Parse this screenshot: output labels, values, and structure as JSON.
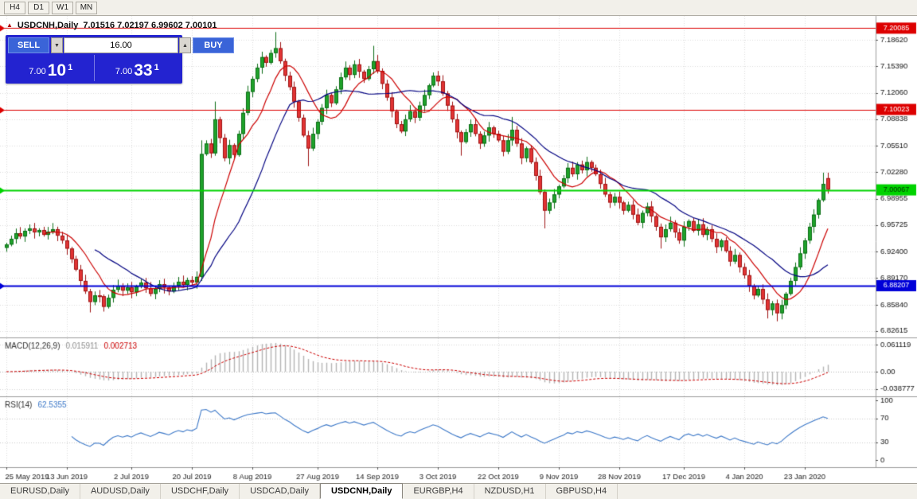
{
  "toolbar": {
    "timeframes": [
      "H4",
      "D1",
      "W1",
      "MN"
    ]
  },
  "chart_header": {
    "icon": "▲",
    "symbol_title": "USDCNH,Daily",
    "ohlc": "7.01516 7.02197 6.99602 7.00101"
  },
  "trade_panel": {
    "sell_label": "SELL",
    "buy_label": "BUY",
    "volume": "16.00",
    "volume_down_icon": "▼",
    "volume_up_icon": "▲",
    "sell_price": {
      "prefix": "7.00",
      "big": "10",
      "sup": "1"
    },
    "buy_price": {
      "prefix": "7.00",
      "big": "33",
      "sup": "1"
    }
  },
  "bottom_tabs": {
    "active_index": 4,
    "tabs": [
      "EURUSD,Daily",
      "AUDUSD,Daily",
      "USDCHF,Daily",
      "USDCAD,Daily",
      "USDCNH,Daily",
      "EURGBP,H4",
      "NZDUSD,H1",
      "GBPUSD,H4"
    ]
  },
  "chart_data": {
    "type": "candlestick+indicators",
    "symbol": "USDCNH",
    "timeframe": "Daily",
    "price_range": {
      "top": 7.216,
      "bottom": 6.818
    },
    "price_axis_ticks": [
      "7.18620",
      "7.15390",
      "7.12060",
      "7.08838",
      "7.05510",
      "7.02280",
      "6.98955",
      "6.95725",
      "6.92400",
      "6.89170",
      "6.85840",
      "6.82615"
    ],
    "levels": [
      {
        "price": 7.20085,
        "label": "7.20085",
        "color": "#dd0000",
        "width": 1,
        "text": "#ffffff"
      },
      {
        "price": 7.10023,
        "label": "7.10023",
        "color": "#dd0000",
        "width": 1,
        "text": "#ffffff"
      },
      {
        "price": 7.00067,
        "label": "7.00067",
        "color": "#00d300",
        "width": 2,
        "text": "#003300"
      },
      {
        "price": 6.88207,
        "label": "6.88207",
        "color": "#0000d8",
        "width": 2,
        "text": "#ffffff"
      }
    ],
    "date_labels": [
      {
        "index": 0,
        "label": "25 May 2019"
      },
      {
        "index": 13,
        "label": "13 Jun 2019"
      },
      {
        "index": 27,
        "label": "2 Jul 2019"
      },
      {
        "index": 40,
        "label": "20 Jul 2019"
      },
      {
        "index": 53,
        "label": "8 Aug 2019"
      },
      {
        "index": 67,
        "label": "27 Aug 2019"
      },
      {
        "index": 80,
        "label": "14 Sep 2019"
      },
      {
        "index": 93,
        "label": "3 Oct 2019"
      },
      {
        "index": 106,
        "label": "22 Oct 2019"
      },
      {
        "index": 119,
        "label": "9 Nov 2019"
      },
      {
        "index": 132,
        "label": "28 Nov 2019"
      },
      {
        "index": 146,
        "label": "17 Dec 2019"
      },
      {
        "index": 159,
        "label": "4 Jan 2020"
      },
      {
        "index": 172,
        "label": "23 Jan 2020"
      }
    ],
    "candles": {
      "closes": [
        6.933,
        6.94,
        6.947,
        6.943,
        6.95,
        6.953,
        6.948,
        6.951,
        6.945,
        6.949,
        6.952,
        6.944,
        6.938,
        6.928,
        6.915,
        6.902,
        6.888,
        6.875,
        6.862,
        6.87,
        6.869,
        6.856,
        6.867,
        6.877,
        6.882,
        6.876,
        6.88,
        6.874,
        6.881,
        6.886,
        6.879,
        6.872,
        6.878,
        6.884,
        6.88,
        6.875,
        6.882,
        6.887,
        6.883,
        6.889,
        6.886,
        6.893,
        7.045,
        7.058,
        7.046,
        7.088,
        7.065,
        7.04,
        7.056,
        7.044,
        7.07,
        7.096,
        7.122,
        7.138,
        7.152,
        7.165,
        7.158,
        7.17,
        7.176,
        7.16,
        7.142,
        7.128,
        7.11,
        7.09,
        7.068,
        7.052,
        7.07,
        7.085,
        7.102,
        7.118,
        7.108,
        7.125,
        7.14,
        7.152,
        7.143,
        7.156,
        7.147,
        7.138,
        7.15,
        7.16,
        7.148,
        7.132,
        7.115,
        7.098,
        7.082,
        7.073,
        7.088,
        7.098,
        7.09,
        7.105,
        7.118,
        7.13,
        7.142,
        7.135,
        7.12,
        7.105,
        7.088,
        7.072,
        7.06,
        7.072,
        7.082,
        7.07,
        7.058,
        7.068,
        7.078,
        7.07,
        7.062,
        7.048,
        7.062,
        7.075,
        7.058,
        7.04,
        7.052,
        7.035,
        7.018,
        6.998,
        6.975,
        6.985,
        6.995,
        7.005,
        7.015,
        7.028,
        7.02,
        7.032,
        7.025,
        7.035,
        7.028,
        7.02,
        7.008,
        6.995,
        6.985,
        6.992,
        6.985,
        6.975,
        6.982,
        6.97,
        6.96,
        6.972,
        6.98,
        6.968,
        6.955,
        6.942,
        6.952,
        6.96,
        6.948,
        6.938,
        6.955,
        6.962,
        6.95,
        6.958,
        6.945,
        6.952,
        6.94,
        6.93,
        6.938,
        6.925,
        6.912,
        6.92,
        6.905,
        6.895,
        6.882,
        6.87,
        6.878,
        6.865,
        6.852,
        6.86,
        6.848,
        6.858,
        6.872,
        6.888,
        6.905,
        6.922,
        6.938,
        6.955,
        6.97,
        6.988,
        7.008,
        7.00101
      ],
      "overrides": {
        "18": {
          "l": 6.849
        },
        "21": {
          "l": 6.85
        },
        "42": {
          "l": 6.888,
          "h": 7.062
        },
        "45": {
          "h": 7.11
        },
        "58": {
          "h": 7.196
        },
        "65": {
          "l": 7.03
        },
        "79": {
          "h": 7.179
        },
        "98": {
          "l": 7.043
        },
        "109": {
          "h": 7.091
        },
        "116": {
          "l": 6.953
        },
        "141": {
          "l": 6.928
        },
        "164": {
          "l": 6.8415
        },
        "166": {
          "l": 6.838
        },
        "176": {
          "h": 7.022
        },
        "177": {
          "o": 7.01516,
          "h": 7.02197,
          "l": 6.99602,
          "c": 7.00101
        }
      }
    },
    "moving_averages": [
      {
        "period": 9,
        "color": "#cc0000"
      },
      {
        "period": 20,
        "color": "#000080"
      }
    ],
    "macd": {
      "label": "MACD(12,26,9)",
      "value": "0.015911",
      "signal_value": "0.002713",
      "fast": 12,
      "slow": 26,
      "signal": 9,
      "hist_color": "#b4b4b4",
      "signal_color": "#cc0000",
      "axis": [
        {
          "v": 0.061119,
          "label": "0.061119"
        },
        {
          "v": 0,
          "label": "0.00"
        },
        {
          "v": -0.038777,
          "label": "-0.038777"
        }
      ]
    },
    "rsi": {
      "label": "RSI(14)",
      "value": "62.5355",
      "period": 14,
      "color": "#3c78c8",
      "axis": [
        {
          "v": 100,
          "label": "100",
          "grid": false
        },
        {
          "v": 70,
          "label": "70",
          "grid": true
        },
        {
          "v": 30,
          "label": "30",
          "grid": true
        },
        {
          "v": 0,
          "label": "0",
          "grid": false
        }
      ]
    },
    "colors": {
      "up": "#1fa32b",
      "up_border": "#0d6e17",
      "down": "#e23535",
      "down_border": "#9e1414",
      "grid": "#dcdcdc",
      "axis_text": "#111111",
      "bg": "#ffffff"
    }
  }
}
